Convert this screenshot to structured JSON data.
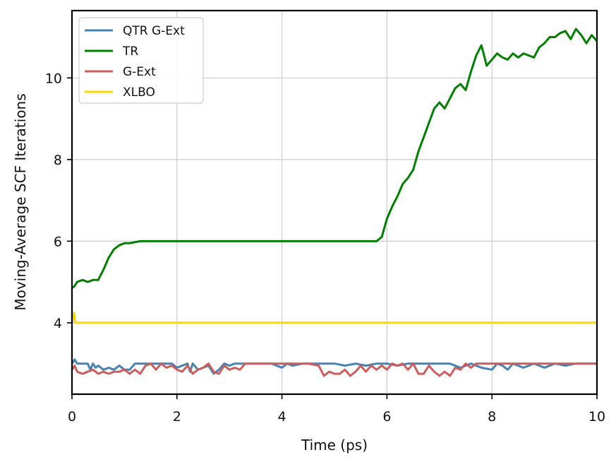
{
  "chart_data": {
    "type": "line",
    "xlabel": "Time (ps)",
    "ylabel": "Moving-Average SCF Iterations",
    "xlim": [
      0,
      10
    ],
    "ylim": [
      2.25,
      11.65
    ],
    "xticks": [
      0,
      2,
      4,
      6,
      8,
      10
    ],
    "yticks": [
      4,
      6,
      8,
      10
    ],
    "grid": true,
    "legend_position": "top-left",
    "series": [
      {
        "name": "QTR G-Ext",
        "color": "#4682b4",
        "x": [
          0,
          0.05,
          0.1,
          0.3,
          0.35,
          0.4,
          0.45,
          0.5,
          0.6,
          0.7,
          0.8,
          0.9,
          1.0,
          1.1,
          1.2,
          1.3,
          1.4,
          1.6,
          1.8,
          1.9,
          2.0,
          2.2,
          2.25,
          2.3,
          2.4,
          2.5,
          2.6,
          2.7,
          2.8,
          2.9,
          3.0,
          3.1,
          3.2,
          3.4,
          3.6,
          3.8,
          4.0,
          4.1,
          4.2,
          4.4,
          4.6,
          4.8,
          5.0,
          5.2,
          5.4,
          5.6,
          5.8,
          6.0,
          6.2,
          6.4,
          6.6,
          6.8,
          7.0,
          7.2,
          7.4,
          7.6,
          7.8,
          8.0,
          8.1,
          8.2,
          8.3,
          8.4,
          8.6,
          8.8,
          9.0,
          9.2,
          9.4,
          9.6,
          9.8,
          10.0
        ],
        "y": [
          3.0,
          3.1,
          3.0,
          3.0,
          2.85,
          3.0,
          2.9,
          2.95,
          2.85,
          2.9,
          2.85,
          2.95,
          2.85,
          2.85,
          3.0,
          3.0,
          3.0,
          3.0,
          3.0,
          3.0,
          2.9,
          3.0,
          2.8,
          3.0,
          2.85,
          2.9,
          2.95,
          2.75,
          2.85,
          3.0,
          2.95,
          3.0,
          3.0,
          3.0,
          3.0,
          3.0,
          2.9,
          3.0,
          2.95,
          3.0,
          3.0,
          3.0,
          3.0,
          2.95,
          3.0,
          2.95,
          3.0,
          3.0,
          2.95,
          3.0,
          3.0,
          3.0,
          3.0,
          3.0,
          2.9,
          3.0,
          2.9,
          2.85,
          3.0,
          2.95,
          2.85,
          3.0,
          2.9,
          3.0,
          2.9,
          3.0,
          2.95,
          3.0,
          3.0,
          3.0
        ]
      },
      {
        "name": "TR",
        "color": "#008000",
        "x": [
          0,
          0.05,
          0.1,
          0.2,
          0.3,
          0.4,
          0.5,
          0.6,
          0.7,
          0.8,
          0.9,
          1.0,
          1.1,
          1.3,
          1.5,
          2.0,
          3.0,
          4.0,
          5.0,
          5.8,
          5.9,
          6.0,
          6.1,
          6.2,
          6.3,
          6.4,
          6.5,
          6.6,
          6.7,
          6.8,
          6.9,
          7.0,
          7.1,
          7.2,
          7.3,
          7.4,
          7.5,
          7.6,
          7.7,
          7.8,
          7.85,
          7.9,
          8.0,
          8.1,
          8.2,
          8.3,
          8.4,
          8.5,
          8.6,
          8.7,
          8.8,
          8.9,
          9.0,
          9.1,
          9.2,
          9.3,
          9.4,
          9.5,
          9.6,
          9.7,
          9.8,
          9.9,
          10.0
        ],
        "y": [
          4.85,
          4.9,
          5.0,
          5.05,
          5.0,
          5.05,
          5.05,
          5.3,
          5.6,
          5.8,
          5.9,
          5.95,
          5.95,
          6.0,
          6.0,
          6.0,
          6.0,
          6.0,
          6.0,
          6.0,
          6.1,
          6.55,
          6.85,
          7.1,
          7.4,
          7.55,
          7.75,
          8.2,
          8.55,
          8.9,
          9.25,
          9.4,
          9.25,
          9.5,
          9.75,
          9.85,
          9.7,
          10.15,
          10.55,
          10.8,
          10.55,
          10.3,
          10.45,
          10.6,
          10.5,
          10.45,
          10.6,
          10.5,
          10.6,
          10.55,
          10.5,
          10.75,
          10.85,
          11.0,
          11.0,
          11.1,
          11.15,
          10.95,
          11.2,
          11.05,
          10.85,
          11.05,
          10.9
        ]
      },
      {
        "name": "G-Ext",
        "color": "#cd5c5c",
        "x": [
          0,
          0.05,
          0.1,
          0.2,
          0.3,
          0.4,
          0.5,
          0.6,
          0.7,
          0.8,
          0.9,
          1.0,
          1.1,
          1.2,
          1.3,
          1.4,
          1.5,
          1.6,
          1.7,
          1.8,
          1.9,
          2.0,
          2.1,
          2.2,
          2.3,
          2.4,
          2.5,
          2.6,
          2.7,
          2.8,
          2.9,
          3.0,
          3.1,
          3.2,
          3.3,
          3.5,
          3.7,
          3.9,
          4.1,
          4.3,
          4.5,
          4.7,
          4.8,
          4.9,
          5.0,
          5.1,
          5.2,
          5.3,
          5.4,
          5.5,
          5.6,
          5.7,
          5.8,
          5.9,
          6.0,
          6.1,
          6.2,
          6.3,
          6.4,
          6.5,
          6.6,
          6.7,
          6.8,
          6.9,
          7.0,
          7.1,
          7.2,
          7.3,
          7.4,
          7.5,
          7.6,
          7.7,
          7.8,
          7.9,
          8.0,
          8.3,
          8.6,
          9.0,
          9.5,
          10.0
        ],
        "y": [
          2.85,
          2.95,
          2.8,
          2.75,
          2.8,
          2.85,
          2.75,
          2.8,
          2.75,
          2.8,
          2.8,
          2.85,
          2.75,
          2.85,
          2.75,
          2.95,
          3.0,
          2.85,
          3.0,
          2.9,
          2.95,
          2.85,
          2.8,
          2.95,
          2.75,
          2.85,
          2.9,
          3.0,
          2.8,
          2.75,
          2.95,
          2.85,
          2.9,
          2.85,
          3.0,
          3.0,
          3.0,
          3.0,
          3.0,
          3.0,
          3.0,
          2.95,
          2.7,
          2.8,
          2.75,
          2.75,
          2.85,
          2.7,
          2.8,
          2.95,
          2.8,
          2.95,
          2.85,
          2.95,
          2.85,
          3.0,
          2.95,
          3.0,
          2.85,
          3.0,
          2.75,
          2.75,
          2.95,
          2.8,
          2.7,
          2.8,
          2.7,
          2.9,
          2.85,
          3.0,
          2.9,
          3.0,
          3.0,
          3.0,
          3.0,
          3.0,
          3.0,
          3.0,
          3.0,
          3.0
        ]
      },
      {
        "name": "XLBO",
        "color": "#ffd700",
        "x": [
          0,
          0.04,
          0.06,
          0.1,
          1.0,
          2.0,
          4.0,
          6.0,
          8.0,
          10.0
        ],
        "y": [
          4.0,
          4.25,
          4.0,
          4.0,
          4.0,
          4.0,
          4.0,
          4.0,
          4.0,
          4.0
        ]
      }
    ]
  }
}
